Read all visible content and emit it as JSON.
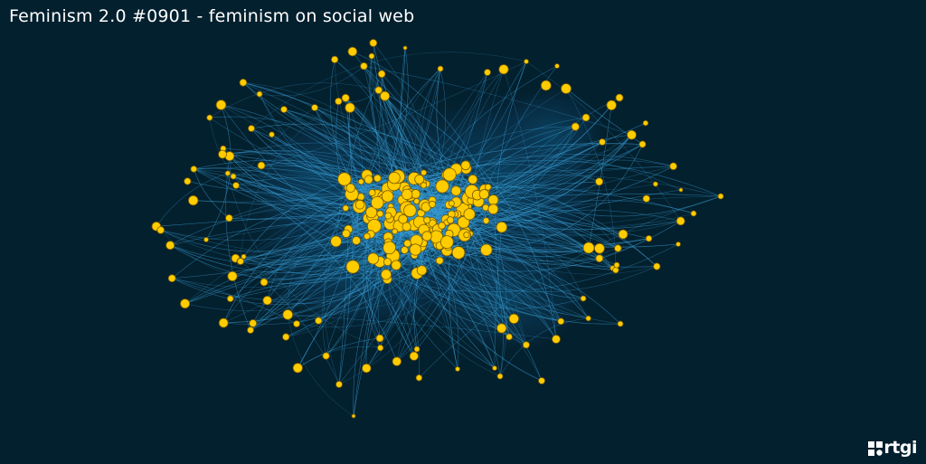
{
  "header": {
    "title": "Feminism 2.0 #0901 - feminism on social web"
  },
  "branding": {
    "logo_text": "rtgi",
    "logo_icon": "rtgi-logo-icon"
  },
  "colors": {
    "background": "#03202e",
    "node_fill": "#ffcc00",
    "node_stroke": "#7a5a00",
    "edge": "#3aa0d8",
    "cluster_halo": "#0a3550",
    "title_text": "#ffffff"
  }
}
